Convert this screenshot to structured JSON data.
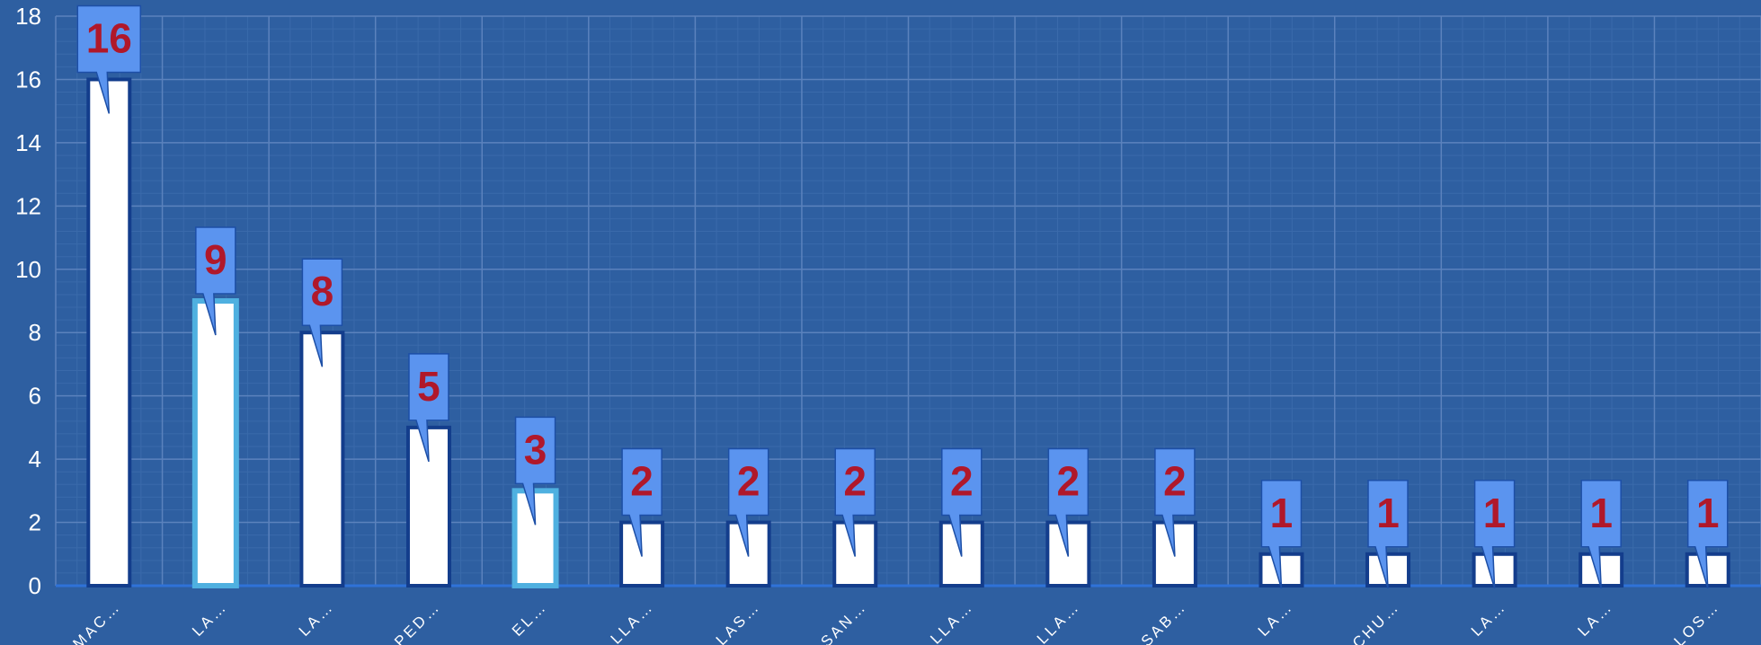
{
  "chart_data": {
    "type": "bar",
    "categories": [
      "MAC…",
      "LA…",
      "LA…",
      "PED…",
      "EL…",
      "LLA…",
      "LAS…",
      "SAN…",
      "LLA…",
      "LLA…",
      "SAB…",
      "LA…",
      "CHU…",
      "LA…",
      "LA…",
      "LOS…"
    ],
    "values": [
      16,
      9,
      8,
      5,
      3,
      2,
      2,
      2,
      2,
      2,
      2,
      1,
      1,
      1,
      1,
      1
    ],
    "highlighted": [
      false,
      true,
      false,
      false,
      true,
      false,
      false,
      false,
      false,
      false,
      false,
      false,
      false,
      false,
      false,
      false
    ],
    "ylim": [
      0,
      18
    ],
    "yticks": [
      0,
      2,
      4,
      6,
      8,
      10,
      12,
      14,
      16,
      18
    ],
    "grid": true,
    "title": "",
    "xlabel": "",
    "ylabel": "",
    "colors": {
      "background": "#2e5fa1",
      "bar_fill": "#ffffff",
      "bar_border": "#133d8c",
      "bar_border_highlight": "#4fb0e0",
      "callout_fill": "#5b94ef",
      "callout_border": "#1d4fa6",
      "label_color": "#b0182a",
      "grid_major": "#5b82bd",
      "grid_minor": "#3a6aab",
      "axis_line": "#2f72d8"
    }
  }
}
